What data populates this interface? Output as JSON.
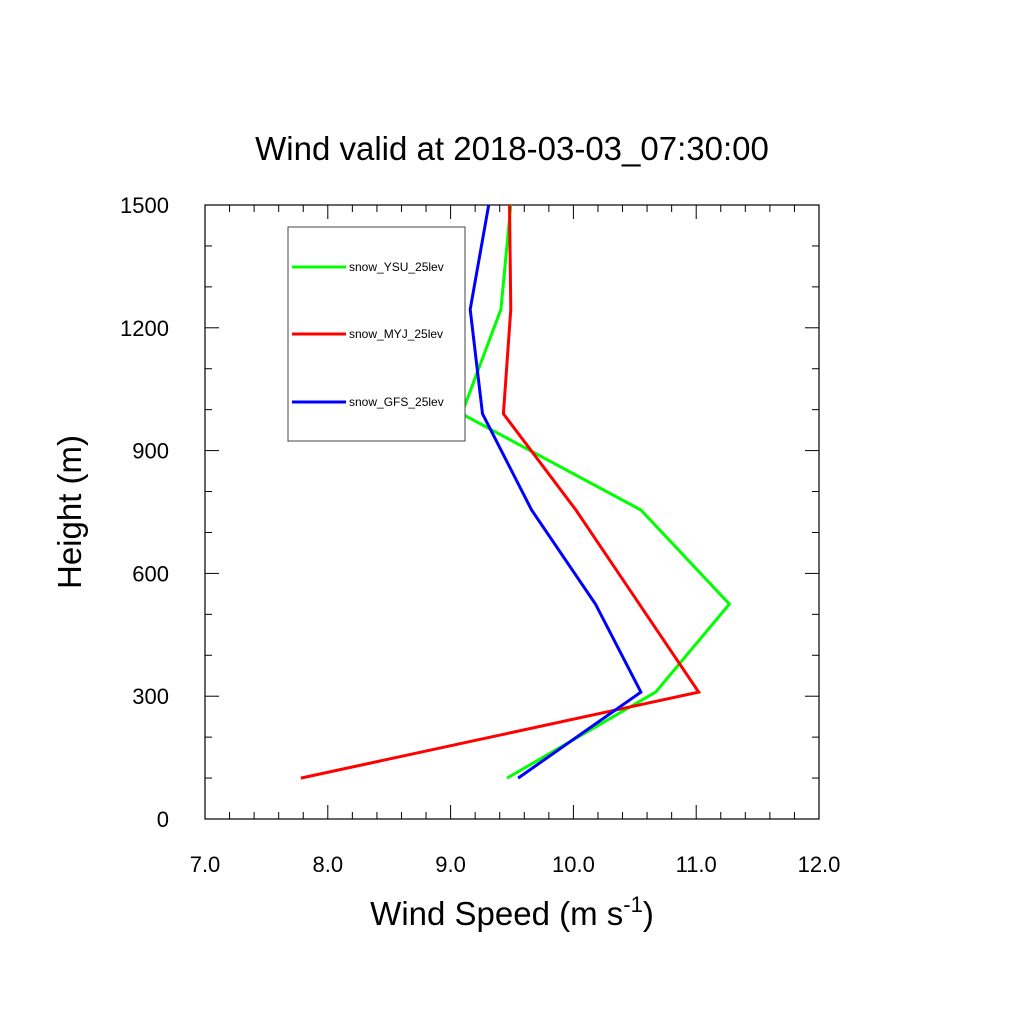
{
  "chart_data": {
    "type": "line",
    "title": "Wind valid at 2018-03-03_07:30:00",
    "xlabel": "Wind Speed (m s",
    "xlabel_superscript": "-1",
    "xlabel_suffix": ")",
    "ylabel": "Height (m)",
    "xlim": [
      7.0,
      12.0
    ],
    "ylim": [
      0,
      1500
    ],
    "x_ticks": [
      "7.0",
      "8.0",
      "9.0",
      "10.0",
      "11.0",
      "12.0"
    ],
    "y_ticks": [
      "0",
      "300",
      "600",
      "900",
      "1200",
      "1500"
    ],
    "x_tick_values": [
      7,
      8,
      9,
      10,
      11,
      12
    ],
    "y_tick_values": [
      0,
      300,
      600,
      900,
      1200,
      1500
    ],
    "grid": false,
    "legend_placement": "top-left",
    "series": [
      {
        "name": "snow_YSU_25lev",
        "color": "#00ff00",
        "points": [
          {
            "x": 9.46,
            "y": 100
          },
          {
            "x": 10.67,
            "y": 310
          },
          {
            "x": 11.27,
            "y": 525
          },
          {
            "x": 10.55,
            "y": 755
          },
          {
            "x": 9.09,
            "y": 990
          },
          {
            "x": 9.41,
            "y": 1245
          },
          {
            "x": 9.49,
            "y": 1500
          }
        ]
      },
      {
        "name": "snow_MYJ_25lev",
        "color": "#ff0000",
        "points": [
          {
            "x": 7.78,
            "y": 100
          },
          {
            "x": 11.02,
            "y": 310
          },
          {
            "x": 10.02,
            "y": 755
          },
          {
            "x": 9.43,
            "y": 990
          },
          {
            "x": 9.49,
            "y": 1245
          },
          {
            "x": 9.48,
            "y": 1500
          }
        ]
      },
      {
        "name": "snow_GFS_25lev",
        "color": "#0000ff",
        "points": [
          {
            "x": 9.55,
            "y": 100
          },
          {
            "x": 10.55,
            "y": 310
          },
          {
            "x": 10.18,
            "y": 525
          },
          {
            "x": 9.66,
            "y": 755
          },
          {
            "x": 9.26,
            "y": 990
          },
          {
            "x": 9.16,
            "y": 1245
          },
          {
            "x": 9.31,
            "y": 1500
          }
        ]
      }
    ]
  }
}
